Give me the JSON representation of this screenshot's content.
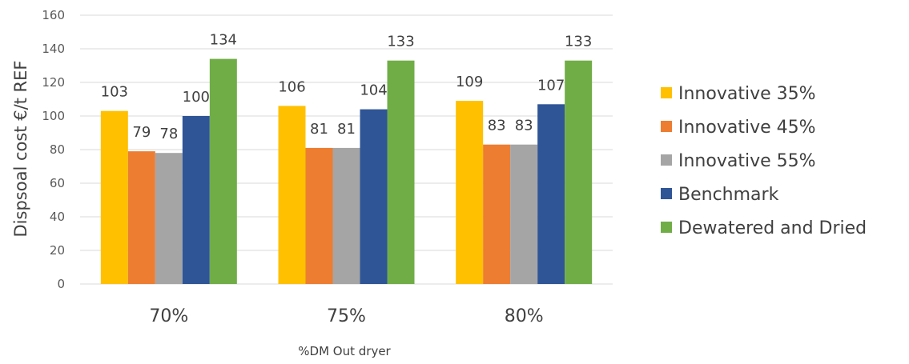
{
  "chart_data": {
    "type": "bar",
    "title": "",
    "xlabel": "%DM Out dryer",
    "ylabel": "Dispsoal cost €/t REF",
    "ylim": [
      0,
      160
    ],
    "yticks": [
      0,
      20,
      40,
      60,
      80,
      100,
      120,
      140,
      160
    ],
    "categories": [
      "70%",
      "75%",
      "80%"
    ],
    "grid": true,
    "legend_position": "right",
    "series": [
      {
        "name": "Innovative 35%",
        "color": "#ffc000",
        "values": [
          103,
          106,
          109
        ]
      },
      {
        "name": "Innovative 45%",
        "color": "#ed7d31",
        "values": [
          79,
          81,
          83
        ]
      },
      {
        "name": "Innovative 55%",
        "color": "#a5a5a5",
        "values": [
          78,
          81,
          83
        ]
      },
      {
        "name": "Benchmark",
        "color": "#2f5597",
        "values": [
          100,
          104,
          107
        ]
      },
      {
        "name": "Dewatered and Dried",
        "color": "#70ad47",
        "values": [
          134,
          133,
          133
        ]
      }
    ]
  }
}
